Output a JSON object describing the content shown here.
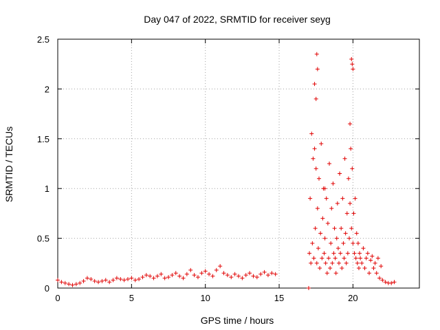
{
  "chart_data": {
    "type": "scatter",
    "title": "Day 047 of 2022, SRMTID for receiver seyg",
    "xlabel": "GPS time / hours",
    "ylabel": "SRMTID / TECUs",
    "xlim": [
      0,
      24.5
    ],
    "ylim": [
      0,
      2.5
    ],
    "xticks": [
      0,
      5,
      10,
      15,
      20
    ],
    "xtick_labels": [
      "0",
      "5",
      "10",
      "15",
      "20"
    ],
    "yticks": [
      0,
      0.5,
      1,
      1.5,
      2,
      2.5
    ],
    "ytick_labels": [
      "0",
      "0.5",
      "1",
      "1.5",
      "2",
      "2.5"
    ],
    "grid": true,
    "marker": "plus",
    "color": "#e00000",
    "series": [
      {
        "name": "SRMTID",
        "x": [
          0.0,
          0.25,
          0.5,
          0.75,
          1.0,
          1.25,
          1.5,
          1.75,
          2.0,
          2.25,
          2.5,
          2.75,
          3.0,
          3.25,
          3.5,
          3.75,
          4.0,
          4.25,
          4.5,
          4.75,
          5.0,
          5.25,
          5.5,
          5.75,
          6.0,
          6.25,
          6.5,
          6.75,
          7.0,
          7.25,
          7.5,
          7.75,
          8.0,
          8.25,
          8.5,
          8.75,
          9.0,
          9.25,
          9.5,
          9.75,
          10.0,
          10.25,
          10.5,
          10.75,
          11.0,
          11.25,
          11.5,
          11.75,
          12.0,
          12.25,
          12.5,
          12.75,
          13.0,
          13.25,
          13.5,
          13.75,
          14.0,
          14.25,
          14.5,
          14.75,
          17.0,
          17.05,
          17.1,
          17.15,
          17.2,
          17.25,
          17.3,
          17.35,
          17.4,
          17.45,
          17.5,
          17.55,
          17.6,
          17.65,
          17.7,
          17.75,
          17.8,
          17.85,
          17.9,
          17.95,
          18.0,
          18.05,
          18.1,
          18.15,
          18.2,
          18.25,
          18.3,
          18.35,
          18.4,
          18.45,
          18.5,
          18.55,
          18.6,
          18.65,
          18.7,
          18.75,
          18.8,
          18.85,
          18.9,
          18.95,
          19.0,
          19.05,
          19.1,
          19.15,
          19.2,
          19.25,
          19.3,
          19.35,
          19.4,
          19.45,
          19.5,
          19.55,
          19.6,
          19.65,
          19.7,
          19.75,
          19.8,
          19.85,
          19.9,
          19.95,
          20.0,
          20.05,
          20.1,
          20.15,
          20.2,
          20.25,
          20.3,
          20.35,
          20.4,
          20.45,
          20.5,
          20.6,
          20.7,
          20.8,
          20.9,
          21.0,
          21.1,
          21.2,
          21.3,
          21.4,
          21.5,
          21.6,
          21.7,
          21.8,
          21.9,
          22.0,
          22.2,
          22.4,
          22.6,
          22.8,
          17.4,
          17.55,
          17.6,
          19.9,
          19.95,
          20.0,
          17.5,
          18.1,
          19.1,
          19.8
        ],
        "y": [
          0.08,
          0.06,
          0.05,
          0.04,
          0.03,
          0.04,
          0.05,
          0.07,
          0.1,
          0.09,
          0.07,
          0.06,
          0.07,
          0.08,
          0.06,
          0.08,
          0.1,
          0.09,
          0.08,
          0.09,
          0.1,
          0.08,
          0.09,
          0.11,
          0.13,
          0.12,
          0.1,
          0.12,
          0.14,
          0.1,
          0.11,
          0.13,
          0.15,
          0.12,
          0.1,
          0.14,
          0.18,
          0.13,
          0.11,
          0.15,
          0.17,
          0.14,
          0.12,
          0.18,
          0.22,
          0.15,
          0.13,
          0.11,
          0.14,
          0.12,
          0.1,
          0.13,
          0.15,
          0.12,
          0.11,
          0.14,
          0.16,
          0.13,
          0.15,
          0.14,
          0.0,
          0.35,
          0.9,
          0.25,
          1.55,
          0.45,
          1.3,
          0.3,
          1.4,
          0.6,
          1.2,
          0.25,
          0.8,
          0.4,
          1.1,
          0.2,
          0.55,
          1.45,
          0.3,
          0.7,
          1.0,
          0.35,
          0.5,
          0.25,
          0.9,
          0.15,
          0.65,
          0.3,
          1.25,
          0.2,
          0.45,
          0.8,
          0.25,
          1.05,
          0.35,
          0.6,
          0.3,
          0.15,
          0.5,
          0.85,
          0.4,
          0.25,
          1.15,
          0.35,
          0.6,
          0.2,
          0.9,
          0.45,
          0.3,
          1.3,
          0.55,
          0.25,
          0.75,
          0.35,
          1.1,
          0.5,
          0.85,
          1.4,
          0.6,
          1.2,
          0.45,
          0.75,
          0.35,
          0.9,
          0.3,
          0.55,
          0.25,
          0.45,
          0.2,
          0.35,
          0.3,
          0.25,
          0.4,
          0.2,
          0.3,
          0.35,
          0.15,
          0.28,
          0.32,
          0.2,
          0.25,
          0.15,
          0.3,
          0.1,
          0.22,
          0.08,
          0.06,
          0.05,
          0.05,
          0.06,
          2.05,
          2.35,
          2.2,
          2.3,
          2.25,
          2.2,
          1.9,
          1.0,
          1.15,
          1.65
        ]
      }
    ]
  }
}
